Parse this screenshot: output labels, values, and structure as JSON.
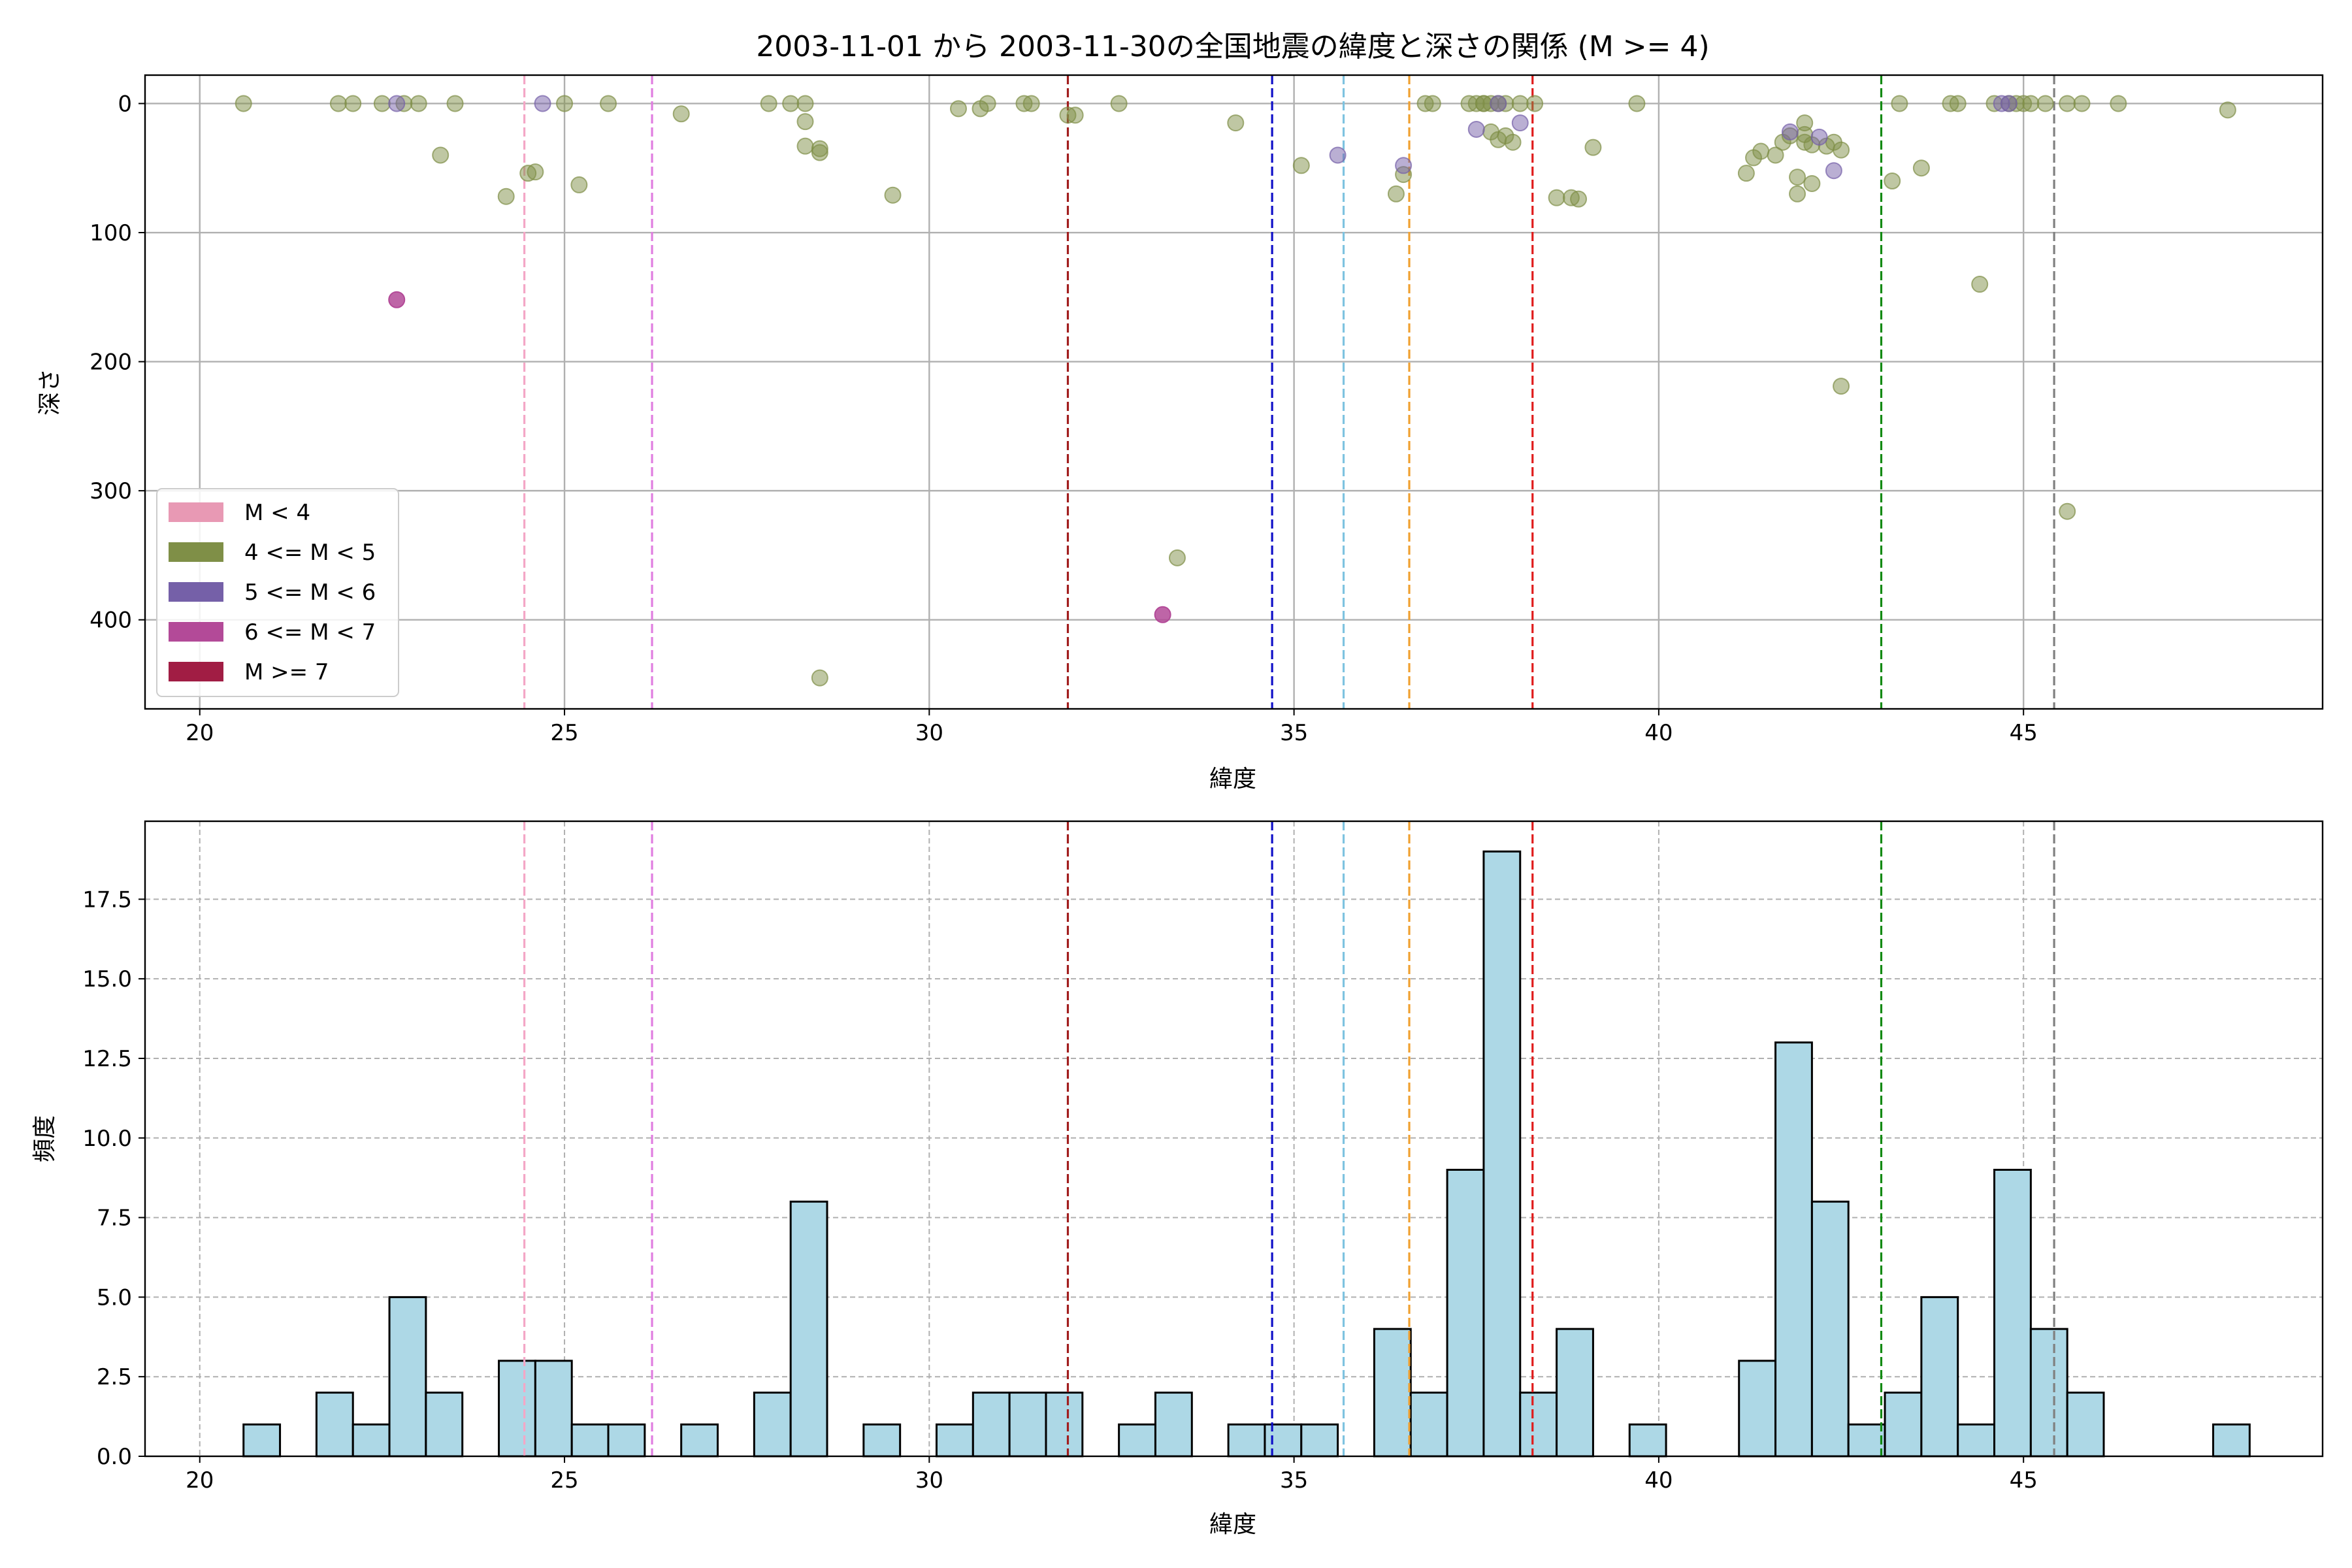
{
  "chart_data": [
    {
      "type": "scatter",
      "title": "2003-11-01 から 2003-11-30の全国地震の緯度と深さの関係 (M >= 4)",
      "xlabel": "緯度",
      "ylabel": "深さ",
      "xlim": [
        19.25,
        49.1
      ],
      "ylim": [
        469,
        -22
      ],
      "y_inverted": true,
      "xticks": [
        "20",
        "25",
        "30",
        "35",
        "40",
        "45"
      ],
      "yticks": [
        "0",
        "100",
        "200",
        "300",
        "400"
      ],
      "grid": true,
      "legend_position": "lower-left",
      "legend": [
        {
          "label": "M < 4",
          "color": "#e899b4"
        },
        {
          "label": "4 <= M < 5",
          "color": "#7f8f47"
        },
        {
          "label": "5 <= M < 6",
          "color": "#7560a8"
        },
        {
          "label": "6 <= M < 7",
          "color": "#b34a98"
        },
        {
          "label": "M >= 7",
          "color": "#a11d44"
        }
      ],
      "vlines": [
        {
          "x": 24.45,
          "color": "#f4a7c6"
        },
        {
          "x": 26.2,
          "color": "#e07ee0"
        },
        {
          "x": 31.9,
          "color": "#a11d1d"
        },
        {
          "x": 34.7,
          "color": "#1010c8"
        },
        {
          "x": 35.68,
          "color": "#7ec3e0"
        },
        {
          "x": 36.58,
          "color": "#f0a030"
        },
        {
          "x": 38.27,
          "color": "#e01c1c"
        },
        {
          "x": 43.05,
          "color": "#138a13"
        },
        {
          "x": 45.42,
          "color": "#808080"
        }
      ],
      "series": [
        {
          "name": "4 <= M < 5",
          "color": "#7f8f47",
          "points": [
            [
              20.6,
              0
            ],
            [
              21.9,
              0
            ],
            [
              22.1,
              0
            ],
            [
              22.5,
              0
            ],
            [
              22.8,
              0
            ],
            [
              23.0,
              0
            ],
            [
              23.5,
              0
            ],
            [
              23.3,
              40
            ],
            [
              24.2,
              72
            ],
            [
              24.5,
              54
            ],
            [
              24.6,
              53
            ],
            [
              25.0,
              0
            ],
            [
              25.2,
              63
            ],
            [
              25.6,
              0
            ],
            [
              26.6,
              8
            ],
            [
              27.8,
              0
            ],
            [
              28.1,
              0
            ],
            [
              28.3,
              0
            ],
            [
              28.3,
              14
            ],
            [
              28.3,
              33
            ],
            [
              28.5,
              35
            ],
            [
              28.5,
              38
            ],
            [
              28.5,
              445
            ],
            [
              29.5,
              71
            ],
            [
              30.4,
              4
            ],
            [
              30.7,
              4
            ],
            [
              30.8,
              0
            ],
            [
              31.3,
              0
            ],
            [
              31.4,
              0
            ],
            [
              31.9,
              9
            ],
            [
              32.0,
              9
            ],
            [
              32.6,
              0
            ],
            [
              33.4,
              352
            ],
            [
              34.2,
              15
            ],
            [
              35.1,
              48
            ],
            [
              36.4,
              70
            ],
            [
              36.5,
              55
            ],
            [
              36.8,
              0
            ],
            [
              36.9,
              0
            ],
            [
              37.4,
              0
            ],
            [
              37.5,
              0
            ],
            [
              37.6,
              0
            ],
            [
              37.6,
              0
            ],
            [
              37.7,
              0
            ],
            [
              37.8,
              0
            ],
            [
              37.7,
              22
            ],
            [
              37.8,
              28
            ],
            [
              37.9,
              0
            ],
            [
              37.9,
              25
            ],
            [
              38.0,
              30
            ],
            [
              38.1,
              0
            ],
            [
              38.3,
              0
            ],
            [
              38.6,
              73
            ],
            [
              38.8,
              73
            ],
            [
              38.9,
              74
            ],
            [
              39.1,
              34
            ],
            [
              39.7,
              0
            ],
            [
              41.2,
              54
            ],
            [
              41.3,
              42
            ],
            [
              41.4,
              37
            ],
            [
              41.6,
              40
            ],
            [
              41.7,
              30
            ],
            [
              41.8,
              25
            ],
            [
              41.9,
              70
            ],
            [
              41.9,
              57
            ],
            [
              42.0,
              30
            ],
            [
              42.0,
              24
            ],
            [
              42.1,
              32
            ],
            [
              42.0,
              15
            ],
            [
              42.1,
              62
            ],
            [
              42.3,
              33
            ],
            [
              42.4,
              30
            ],
            [
              42.5,
              36
            ],
            [
              42.5,
              219
            ],
            [
              43.2,
              60
            ],
            [
              43.3,
              0
            ],
            [
              43.6,
              50
            ],
            [
              44.0,
              0
            ],
            [
              44.1,
              0
            ],
            [
              44.4,
              140
            ],
            [
              44.6,
              0
            ],
            [
              44.8,
              0
            ],
            [
              44.9,
              0
            ],
            [
              45.0,
              0
            ],
            [
              45.1,
              0
            ],
            [
              45.3,
              0
            ],
            [
              45.6,
              0
            ],
            [
              45.6,
              316
            ],
            [
              45.8,
              0
            ],
            [
              46.3,
              0
            ],
            [
              47.8,
              5
            ]
          ]
        },
        {
          "name": "5 <= M < 6",
          "color": "#7560a8",
          "points": [
            [
              22.7,
              0
            ],
            [
              24.7,
              0
            ],
            [
              35.6,
              40
            ],
            [
              36.5,
              48
            ],
            [
              37.5,
              20
            ],
            [
              37.8,
              0
            ],
            [
              38.1,
              15
            ],
            [
              41.8,
              22
            ],
            [
              42.2,
              26
            ],
            [
              42.4,
              52
            ],
            [
              44.7,
              0
            ],
            [
              44.8,
              0
            ]
          ]
        },
        {
          "name": "6 <= M < 7",
          "color": "#b34a98",
          "points": [
            [
              22.7,
              152
            ],
            [
              33.2,
              396
            ]
          ]
        }
      ]
    },
    {
      "type": "bar",
      "title": "",
      "xlabel": "緯度",
      "ylabel": "頻度",
      "xlim": [
        19.25,
        49.1
      ],
      "ylim": [
        0,
        19.95
      ],
      "xticks": [
        "20",
        "25",
        "30",
        "35",
        "40",
        "45"
      ],
      "yticks": [
        "0.0",
        "2.5",
        "5.0",
        "7.5",
        "10.0",
        "12.5",
        "15.0",
        "17.5"
      ],
      "grid": true,
      "bin_width": 0.5,
      "bar_color": "#add8e6",
      "bins": [
        {
          "x": 20.6,
          "count": 1
        },
        {
          "x": 21.6,
          "count": 2
        },
        {
          "x": 22.1,
          "count": 1
        },
        {
          "x": 22.6,
          "count": 5
        },
        {
          "x": 23.1,
          "count": 2
        },
        {
          "x": 24.1,
          "count": 3
        },
        {
          "x": 24.6,
          "count": 3
        },
        {
          "x": 25.1,
          "count": 1
        },
        {
          "x": 25.6,
          "count": 1
        },
        {
          "x": 26.6,
          "count": 1
        },
        {
          "x": 27.6,
          "count": 2
        },
        {
          "x": 28.1,
          "count": 8
        },
        {
          "x": 29.1,
          "count": 1
        },
        {
          "x": 30.1,
          "count": 1
        },
        {
          "x": 30.6,
          "count": 2
        },
        {
          "x": 31.1,
          "count": 2
        },
        {
          "x": 31.6,
          "count": 2
        },
        {
          "x": 32.6,
          "count": 1
        },
        {
          "x": 33.1,
          "count": 2
        },
        {
          "x": 34.1,
          "count": 1
        },
        {
          "x": 34.6,
          "count": 1
        },
        {
          "x": 35.1,
          "count": 1
        },
        {
          "x": 36.1,
          "count": 4
        },
        {
          "x": 36.6,
          "count": 2
        },
        {
          "x": 37.1,
          "count": 9
        },
        {
          "x": 37.6,
          "count": 19
        },
        {
          "x": 38.1,
          "count": 2
        },
        {
          "x": 38.6,
          "count": 4
        },
        {
          "x": 39.6,
          "count": 1
        },
        {
          "x": 41.1,
          "count": 3
        },
        {
          "x": 41.6,
          "count": 13
        },
        {
          "x": 42.1,
          "count": 8
        },
        {
          "x": 42.6,
          "count": 1
        },
        {
          "x": 43.1,
          "count": 2
        },
        {
          "x": 43.6,
          "count": 5
        },
        {
          "x": 44.1,
          "count": 1
        },
        {
          "x": 44.6,
          "count": 9
        },
        {
          "x": 45.1,
          "count": 4
        },
        {
          "x": 45.6,
          "count": 2
        },
        {
          "x": 47.6,
          "count": 1
        }
      ],
      "vlines": [
        {
          "x": 24.45,
          "color": "#f4a7c6"
        },
        {
          "x": 26.2,
          "color": "#e07ee0"
        },
        {
          "x": 31.9,
          "color": "#a11d1d"
        },
        {
          "x": 34.7,
          "color": "#1010c8"
        },
        {
          "x": 35.68,
          "color": "#7ec3e0"
        },
        {
          "x": 36.58,
          "color": "#f0a030"
        },
        {
          "x": 38.27,
          "color": "#e01c1c"
        },
        {
          "x": 43.05,
          "color": "#138a13"
        },
        {
          "x": 45.42,
          "color": "#808080"
        }
      ]
    }
  ]
}
